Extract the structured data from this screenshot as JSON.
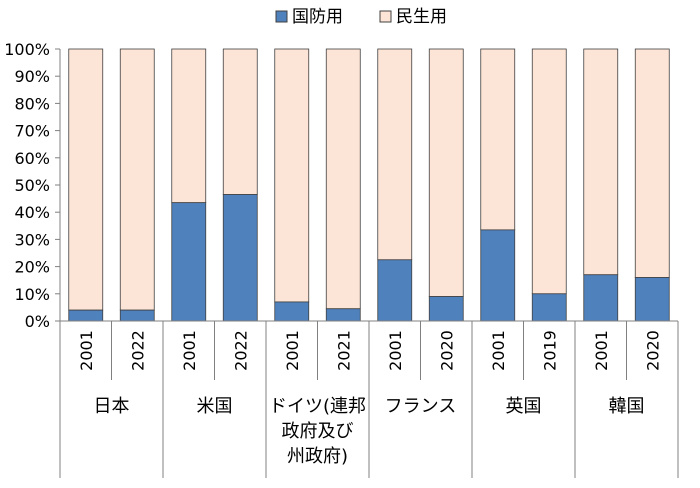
{
  "chart_data": {
    "type": "bar",
    "stacked": true,
    "percent_stacked": true,
    "legend": {
      "position": "top",
      "entries": [
        {
          "name": "国防用",
          "color": "#4f81bd"
        },
        {
          "name": "民生用",
          "color": "#fce4d6"
        }
      ]
    },
    "y_ticks": [
      "0%",
      "10%",
      "20%",
      "30%",
      "40%",
      "50%",
      "60%",
      "70%",
      "80%",
      "90%",
      "100%"
    ],
    "ylim": [
      0,
      100
    ],
    "grid": false,
    "groups": [
      {
        "label": "日本",
        "label_lines": [
          "日本"
        ],
        "bars": [
          {
            "year": "2001",
            "defense": 4,
            "civil": 96
          },
          {
            "year": "2022",
            "defense": 4,
            "civil": 96
          }
        ]
      },
      {
        "label": "米国",
        "label_lines": [
          "米国"
        ],
        "bars": [
          {
            "year": "2001",
            "defense": 43.5,
            "civil": 56.5
          },
          {
            "year": "2022",
            "defense": 46.5,
            "civil": 53.5
          }
        ]
      },
      {
        "label": "ドイツ(連邦政府及び州政府)",
        "label_lines": [
          "ドイツ(連邦",
          "政府及び",
          "州政府)"
        ],
        "bars": [
          {
            "year": "2001",
            "defense": 7,
            "civil": 93
          },
          {
            "year": "2021",
            "defense": 4.5,
            "civil": 95.5
          }
        ]
      },
      {
        "label": "フランス",
        "label_lines": [
          "フランス"
        ],
        "bars": [
          {
            "year": "2001",
            "defense": 22.5,
            "civil": 77.5
          },
          {
            "year": "2020",
            "defense": 9,
            "civil": 91
          }
        ]
      },
      {
        "label": "英国",
        "label_lines": [
          "英国"
        ],
        "bars": [
          {
            "year": "2001",
            "defense": 33.5,
            "civil": 66.5
          },
          {
            "year": "2019",
            "defense": 10,
            "civil": 90
          }
        ]
      },
      {
        "label": "韓国",
        "label_lines": [
          "韓国"
        ],
        "bars": [
          {
            "year": "2001",
            "defense": 17,
            "civil": 83
          },
          {
            "year": "2020",
            "defense": 16,
            "civil": 84
          }
        ]
      }
    ]
  }
}
